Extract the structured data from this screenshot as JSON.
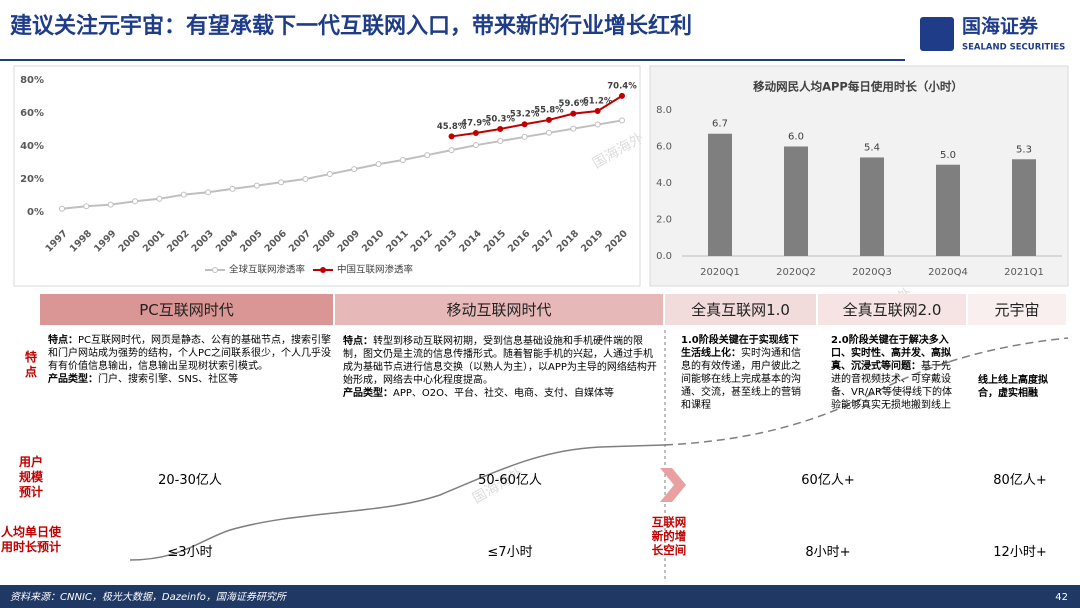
{
  "header": {
    "title": "建议关注元宇宙：有望承载下一代互联网入口，带来新的行业增长红利",
    "logo": "国海证券",
    "logo_en": "SEALAND SECURITIES"
  },
  "watermark": "国海海外",
  "chart_data": [
    {
      "type": "line",
      "categories": [
        "1997",
        "1998",
        "1999",
        "2000",
        "2001",
        "2002",
        "2003",
        "2004",
        "2005",
        "2006",
        "2007",
        "2008",
        "2009",
        "2010",
        "2011",
        "2012",
        "2013",
        "2014",
        "2015",
        "2016",
        "2017",
        "2018",
        "2019",
        "2020"
      ],
      "series": [
        {
          "name": "全球互联网渗透率",
          "color": "#bfbfbf",
          "values": [
            2,
            3.5,
            4.5,
            6.5,
            8,
            10.5,
            12,
            14,
            16,
            18,
            20,
            23,
            26,
            29,
            31.5,
            34.5,
            37.5,
            40.5,
            43,
            45.5,
            48,
            50.5,
            53,
            55.5
          ]
        },
        {
          "name": "中国互联网渗透率",
          "color": "#c00000",
          "values": [
            null,
            null,
            null,
            null,
            null,
            null,
            null,
            null,
            null,
            null,
            null,
            null,
            null,
            null,
            null,
            null,
            45.8,
            47.9,
            50.3,
            53.2,
            55.8,
            59.6,
            61.2,
            70.4
          ],
          "value_labels": [
            null,
            null,
            null,
            null,
            null,
            null,
            null,
            null,
            null,
            null,
            null,
            null,
            null,
            null,
            null,
            null,
            "45.8%",
            "47.9%",
            "50.3%",
            "53.2%",
            "55.8%",
            "59.6%",
            "61.2%",
            "70.4%"
          ]
        }
      ],
      "ylim": [
        0,
        80
      ],
      "yticks": [
        {
          "value": 0,
          "label": "0%"
        },
        {
          "value": 20,
          "label": "20%"
        },
        {
          "value": 40,
          "label": "40%"
        },
        {
          "value": 60,
          "label": "60%"
        },
        {
          "value": 80,
          "label": "80%"
        }
      ],
      "grid": false,
      "legend": "bottom"
    },
    {
      "type": "bar",
      "title": "移动网民人均APP每日使用时长（小时）",
      "categories": [
        "2020Q1",
        "2020Q2",
        "2020Q3",
        "2020Q4",
        "2021Q1"
      ],
      "values": [
        6.7,
        6.0,
        5.4,
        5.0,
        5.3
      ],
      "value_labels": [
        "6.7",
        "6.0",
        "5.4",
        "5.0",
        "5.3"
      ],
      "color": "#7f7f7f",
      "ylim": [
        0,
        8
      ],
      "yticks": [
        {
          "value": 0,
          "label": "0.0"
        },
        {
          "value": 2,
          "label": "2.0"
        },
        {
          "value": 4,
          "label": "4.0"
        },
        {
          "value": 6,
          "label": "6.0"
        },
        {
          "value": 8,
          "label": "8.0"
        }
      ],
      "grid": false
    }
  ],
  "table": {
    "columns": [
      "PC互联网时代",
      "移动互联网时代",
      "全真互联网1.0",
      "全真互联网2.0",
      "元宇宙"
    ],
    "row_labels": [
      "特点",
      "用户规模预计",
      "人均单日使用时长预计"
    ],
    "features": [
      [
        [
          {
            "text": "特点：",
            "bold": true
          },
          {
            "text": "PC互联网时代，网页是静态、公有的基础节点，搜索引擎和门户网站成为强势的结构，个人PC之间联系很少，个人几乎没有有价值信息输出，信息输出呈现树状索引模式。",
            "bold": false
          }
        ],
        [
          {
            "text": "产品类型：",
            "bold": true
          },
          {
            "text": "门户、搜索引擎、SNS、社区等",
            "bold": false
          }
        ]
      ],
      [
        [
          {
            "text": "特点：",
            "bold": true
          },
          {
            "text": "转型到移动互联网初期，受到信息基础设施和手机硬件端的限制，图文仍是主流的信息传播形式。随着智能手机的兴起，人通过手机成为基础节点进行信息交换（以熟人为主），以APP为主导的网络结构开始形成，网络去中心化程度提高。",
            "bold": false
          }
        ],
        [
          {
            "text": "产品类型：",
            "bold": true
          },
          {
            "text": "APP、O2O、平台、社交、电商、支付、自媒体等",
            "bold": false
          }
        ]
      ],
      [
        [
          {
            "text": "1.0阶段关键在于实现线下生活线上化：",
            "bold": true
          },
          {
            "text": "实时沟通和信息的有效传递，用户彼此之间能够在线上完成基本的沟通、交流，甚至线上的营销和课程",
            "bold": false
          }
        ]
      ],
      [
        [
          {
            "text": "2.0阶段关键在于解决多入口、实时性、高并发、高拟真、沉浸式等问题：",
            "bold": true
          },
          {
            "text": "基于先进的音视频技术、可穿戴设备、VR/AR等使得线下的体验能够真实无损地搬到线上",
            "bold": false
          }
        ]
      ],
      [
        [
          {
            "text": "线上线上高度拟合，虚实相融",
            "bold": true
          }
        ]
      ]
    ],
    "users": [
      "20-30亿人",
      "50-60亿人",
      "60亿人+",
      "80亿人+"
    ],
    "time": [
      "≤3小时",
      "≤7小时",
      "8小时+",
      "12小时+"
    ],
    "arrow_label": "互联网新的增长空间"
  },
  "footer": {
    "source": "资料来源：CNNIC，极光大数据，Dazeinfo，国海证券研究所",
    "page": "42"
  }
}
